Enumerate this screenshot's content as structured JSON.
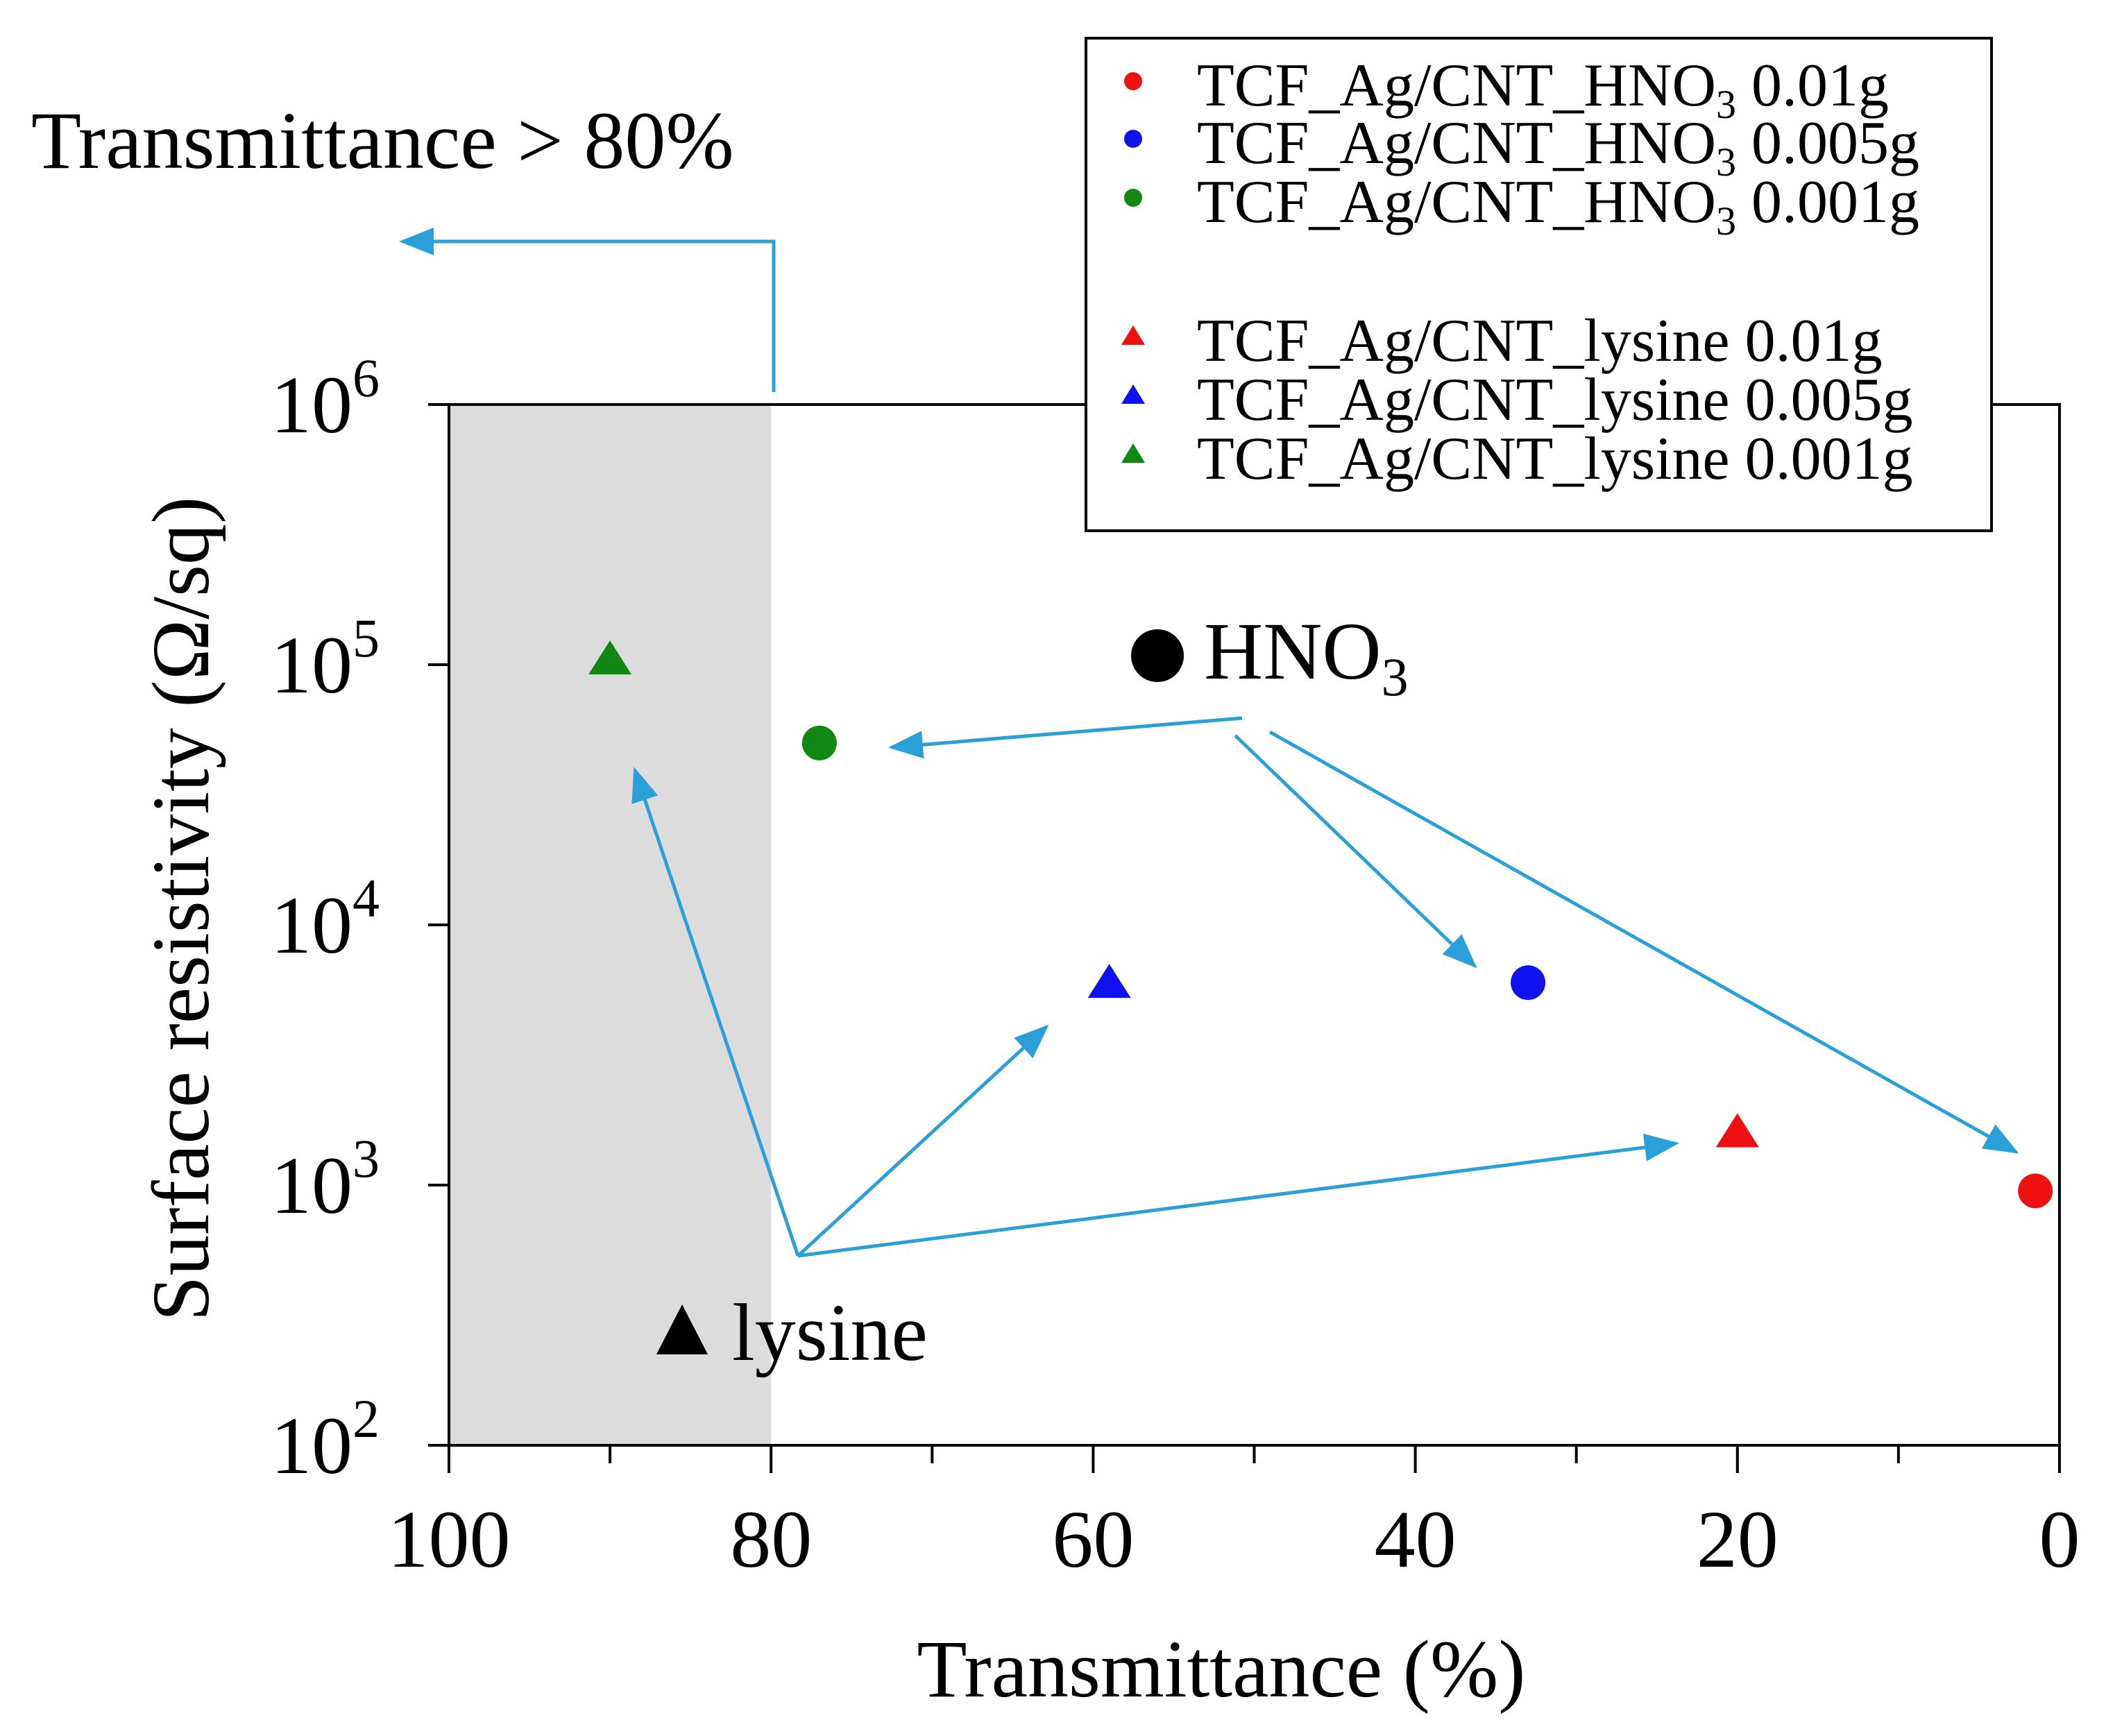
{
  "chart_data": {
    "type": "scatter",
    "title": "",
    "xlabel": "Transmittance (%)",
    "ylabel": "Surface resistivity (Ω/sq)",
    "xlim": [
      100,
      0
    ],
    "ylim": [
      100,
      1000000
    ],
    "yscale": "log",
    "x_ticks": [
      100,
      80,
      60,
      40,
      20,
      0
    ],
    "x_tick_labels": [
      "100",
      "80",
      "60",
      "40",
      "20",
      "0"
    ],
    "y_ticks": [
      {
        "value": 100,
        "base": "10",
        "exp": "2"
      },
      {
        "value": 1000,
        "base": "10",
        "exp": "3"
      },
      {
        "value": 10000,
        "base": "10",
        "exp": "4"
      },
      {
        "value": 100000,
        "base": "10",
        "exp": "5"
      },
      {
        "value": 1000000,
        "base": "10",
        "exp": "6"
      }
    ],
    "shaded_region": {
      "x_from": 100,
      "x_to": 80,
      "color": "#dcdcdc"
    },
    "series": [
      {
        "name": "TCF_Ag/CNT_HNO3 0.01g",
        "legend_prefix": "TCF_Ag/CNT_HNO",
        "legend_sub": "3",
        "legend_suffix": " 0.01g",
        "marker": "circle",
        "color": "#ee1111",
        "x": [
          1.5
        ],
        "y": [
          950
        ]
      },
      {
        "name": "TCF_Ag/CNT_HNO3 0.005g",
        "legend_prefix": "TCF_Ag/CNT_HNO",
        "legend_sub": "3",
        "legend_suffix": " 0.005g",
        "marker": "circle",
        "color": "#1111ee",
        "x": [
          33
        ],
        "y": [
          6000
        ]
      },
      {
        "name": "TCF_Ag/CNT_HNO3 0.001g",
        "legend_prefix": "TCF_Ag/CNT_HNO",
        "legend_sub": "3",
        "legend_suffix": " 0.001g",
        "marker": "circle",
        "color": "#118811",
        "x": [
          77
        ],
        "y": [
          50000
        ]
      },
      {
        "name": "TCF_Ag/CNT_lysine 0.01g",
        "legend_prefix": "TCF_Ag/CNT_lysine",
        "legend_sub": "",
        "legend_suffix": " 0.01g",
        "marker": "triangle",
        "color": "#ee1111",
        "x": [
          20
        ],
        "y": [
          1600
        ]
      },
      {
        "name": "TCF_Ag/CNT_lysine 0.005g",
        "legend_prefix": "TCF_Ag/CNT_lysine",
        "legend_sub": "",
        "legend_suffix": " 0.005g",
        "marker": "triangle",
        "color": "#1111ee",
        "x": [
          59
        ],
        "y": [
          6000
        ]
      },
      {
        "name": "TCF_Ag/CNT_lysine 0.001g",
        "legend_prefix": "TCF_Ag/CNT_lysine",
        "legend_sub": "",
        "legend_suffix": " 0.001g",
        "marker": "triangle",
        "color": "#118811",
        "x": [
          90
        ],
        "y": [
          105000
        ]
      }
    ],
    "annotations": {
      "top_label": "Transmittance > 80%",
      "hno3_label": "HNO",
      "hno3_sub": "3",
      "lysine_label": "lysine"
    },
    "arrow_color": "#2a9fd8",
    "legend_position": "top-right"
  }
}
